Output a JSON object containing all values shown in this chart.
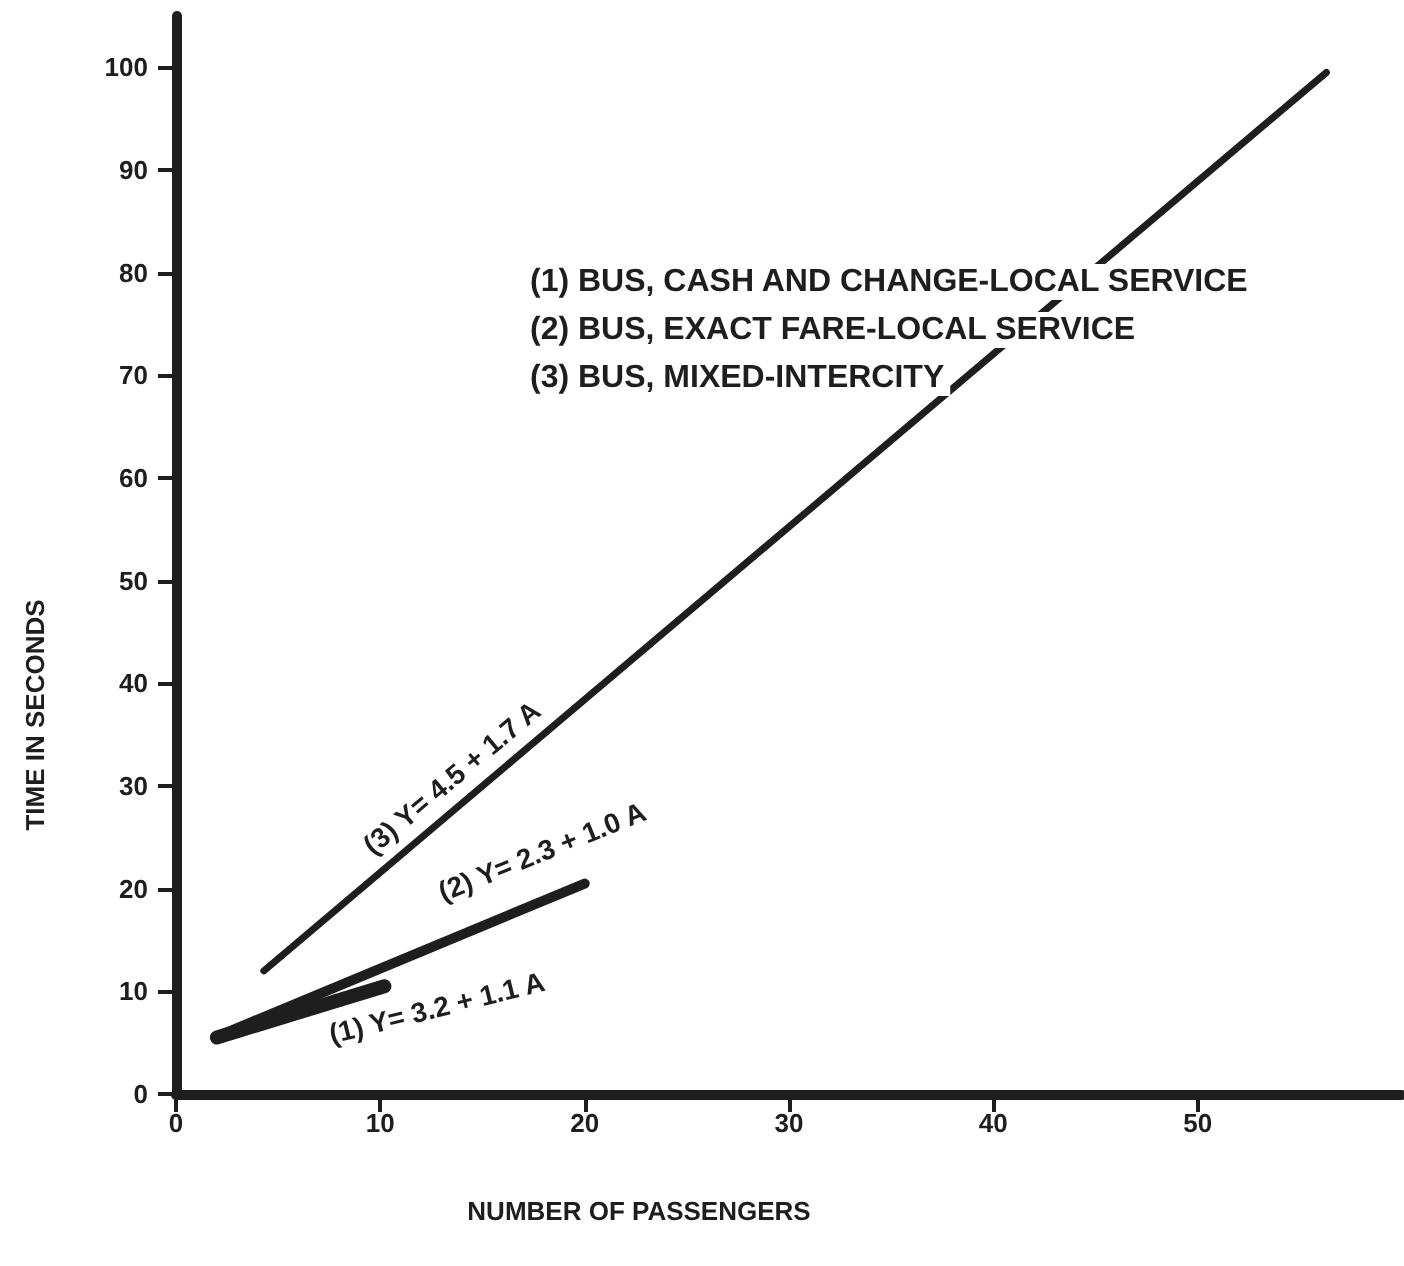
{
  "chart_data": {
    "type": "line",
    "xlabel": "NUMBER OF PASSENGERS",
    "ylabel": "TIME IN SECONDS",
    "xlim": [
      0,
      60
    ],
    "xticks": [
      0,
      10,
      20,
      30,
      40,
      50
    ],
    "ylim": [
      0,
      105
    ],
    "yticks": [
      0,
      10,
      20,
      30,
      40,
      50,
      60,
      70,
      80,
      90,
      100
    ],
    "grid": false,
    "marker": "none",
    "line_style": "solid",
    "series": [
      {
        "color": "#1e1e1e",
        "x": [
          2,
          10.2
        ],
        "values": [
          5.5,
          10.5
        ]
      },
      {
        "color": "#1e1e1e",
        "x": [
          2,
          20
        ],
        "values": [
          5.6,
          20.5
        ]
      },
      {
        "color": "#1e1e1e",
        "x": [
          4.3,
          56.3
        ],
        "values": [
          12,
          99.5
        ]
      }
    ],
    "annotations": [
      "(1) BUS, CASH AND CHANGE-LOCAL SERVICE",
      "(2) BUS, EXACT FARE-LOCAL SERVICE",
      "(3) BUS, MIXED-INTERCITY",
      "(1) Y= 3.2 + 1.1 A",
      "(2) Y= 2.3 + 1.0 A",
      "(3) Y= 4.5 + 1.7 A"
    ]
  }
}
